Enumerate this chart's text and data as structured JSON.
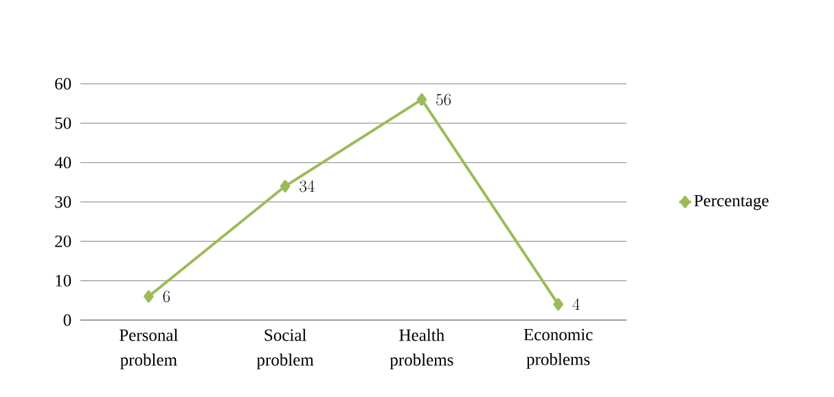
{
  "chart_data": {
    "type": "line",
    "categories": [
      "Personal problem",
      "Social problem",
      "Health problems",
      "Economic problems"
    ],
    "series": [
      {
        "name": "Percentage",
        "color": "#9bbb59",
        "values": [
          6,
          34,
          56,
          4
        ]
      }
    ],
    "ylim": [
      0,
      60
    ],
    "yticks": [
      0,
      10,
      20,
      30,
      40,
      50,
      60
    ],
    "grid": "y",
    "legend": "right",
    "marker": "diamond",
    "line_style": "solid",
    "data_labels": true
  }
}
